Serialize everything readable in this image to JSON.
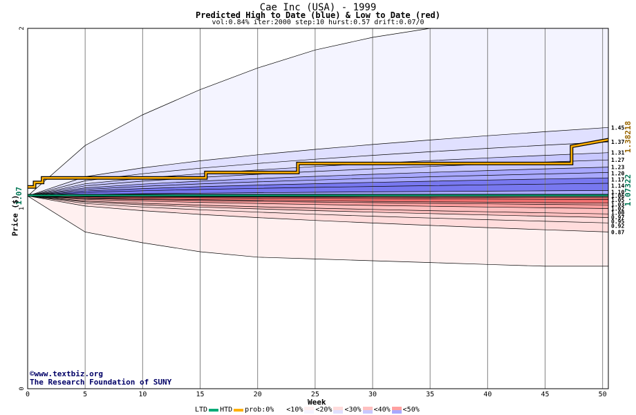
{
  "chart_data": {
    "type": "area",
    "title": "Cae Inc (USA) - 1999",
    "subtitle": "Predicted High to Date (blue) &  Low to Date (red)",
    "params": "vol:0.84% iter:2000 step:10 hurst:0.57 drift:0.07/0",
    "xlabel": "Week",
    "ylabel": "Price ($)",
    "xlim": [
      0,
      50.5
    ],
    "ylim": [
      0,
      2
    ],
    "xticks": [
      0,
      5,
      10,
      15,
      20,
      25,
      30,
      35,
      40,
      45,
      50
    ],
    "yticks": [
      0,
      1,
      2
    ],
    "grid": true,
    "start_price": 1.07,
    "start_price_label": "1.07",
    "current_high": 1.38218,
    "current_high_label": "1.38218",
    "current_low": 1.07322,
    "current_low_label": "1.07322",
    "high_band_x": [
      0,
      5,
      10,
      15,
      20,
      25,
      30,
      35,
      40,
      45,
      50.5
    ],
    "high_bands_final": [
      1.45,
      1.37,
      1.31,
      1.27,
      1.23,
      1.2,
      1.17,
      1.14,
      1.1
    ],
    "high_bands_final_labels": [
      "1.45",
      "1.37",
      "1.31",
      "1.27",
      "1.23",
      "1.20",
      "1.17",
      "1.14",
      "1.10"
    ],
    "low_bands_final": [
      1.06,
      1.05,
      1.03,
      1.02,
      1.0,
      0.97,
      0.95,
      0.92,
      0.87
    ],
    "low_bands_final_labels": [
      "1.06",
      "1.05",
      "1.03",
      "1.02",
      "1.00",
      "0.97",
      "0.95",
      "0.92",
      "0.87"
    ],
    "outer_high": [
      1.07,
      1.35,
      1.52,
      1.66,
      1.78,
      1.88,
      1.95,
      2.0,
      2.0,
      2.0,
      2.0
    ],
    "outer_low": [
      1.07,
      0.87,
      0.81,
      0.76,
      0.73,
      0.72,
      0.71,
      0.7,
      0.69,
      0.68,
      0.68
    ],
    "htd": {
      "x": [
        0,
        0.6,
        0.6,
        1.3,
        1.3,
        15.5,
        15.5,
        23.5,
        23.5,
        47.3,
        47.3,
        50.5
      ],
      "y": [
        1.12,
        1.12,
        1.145,
        1.145,
        1.17,
        1.17,
        1.2,
        1.2,
        1.25,
        1.25,
        1.345,
        1.382
      ]
    },
    "ltd": {
      "x": [
        0,
        50.5
      ],
      "y": [
        1.073,
        1.073
      ]
    },
    "colors": {
      "htd": "#ffb000",
      "ltd": "#00aa77",
      "grid": "#808080",
      "high_label": "#996600",
      "low_label": "#007755",
      "start_label": "#007755"
    },
    "legend": {
      "ltd": "LTD",
      "htd": "HTD",
      "prob_prefix": "prob:0%",
      "items": [
        "<10%",
        "<20%",
        "<30%",
        "<40%",
        "<50%"
      ],
      "high_colors": [
        "#f4f4ff",
        "#e0e0ff",
        "#c8c8ff",
        "#a8a8ff",
        "#7878f0"
      ],
      "low_colors": [
        "#fff0f0",
        "#ffdcdc",
        "#ffc0c0",
        "#ffa0a0",
        "#f07070"
      ]
    }
  },
  "credits": {
    "line1": "©www.textbiz.org",
    "line2": "The Research Foundation of SUNY"
  }
}
